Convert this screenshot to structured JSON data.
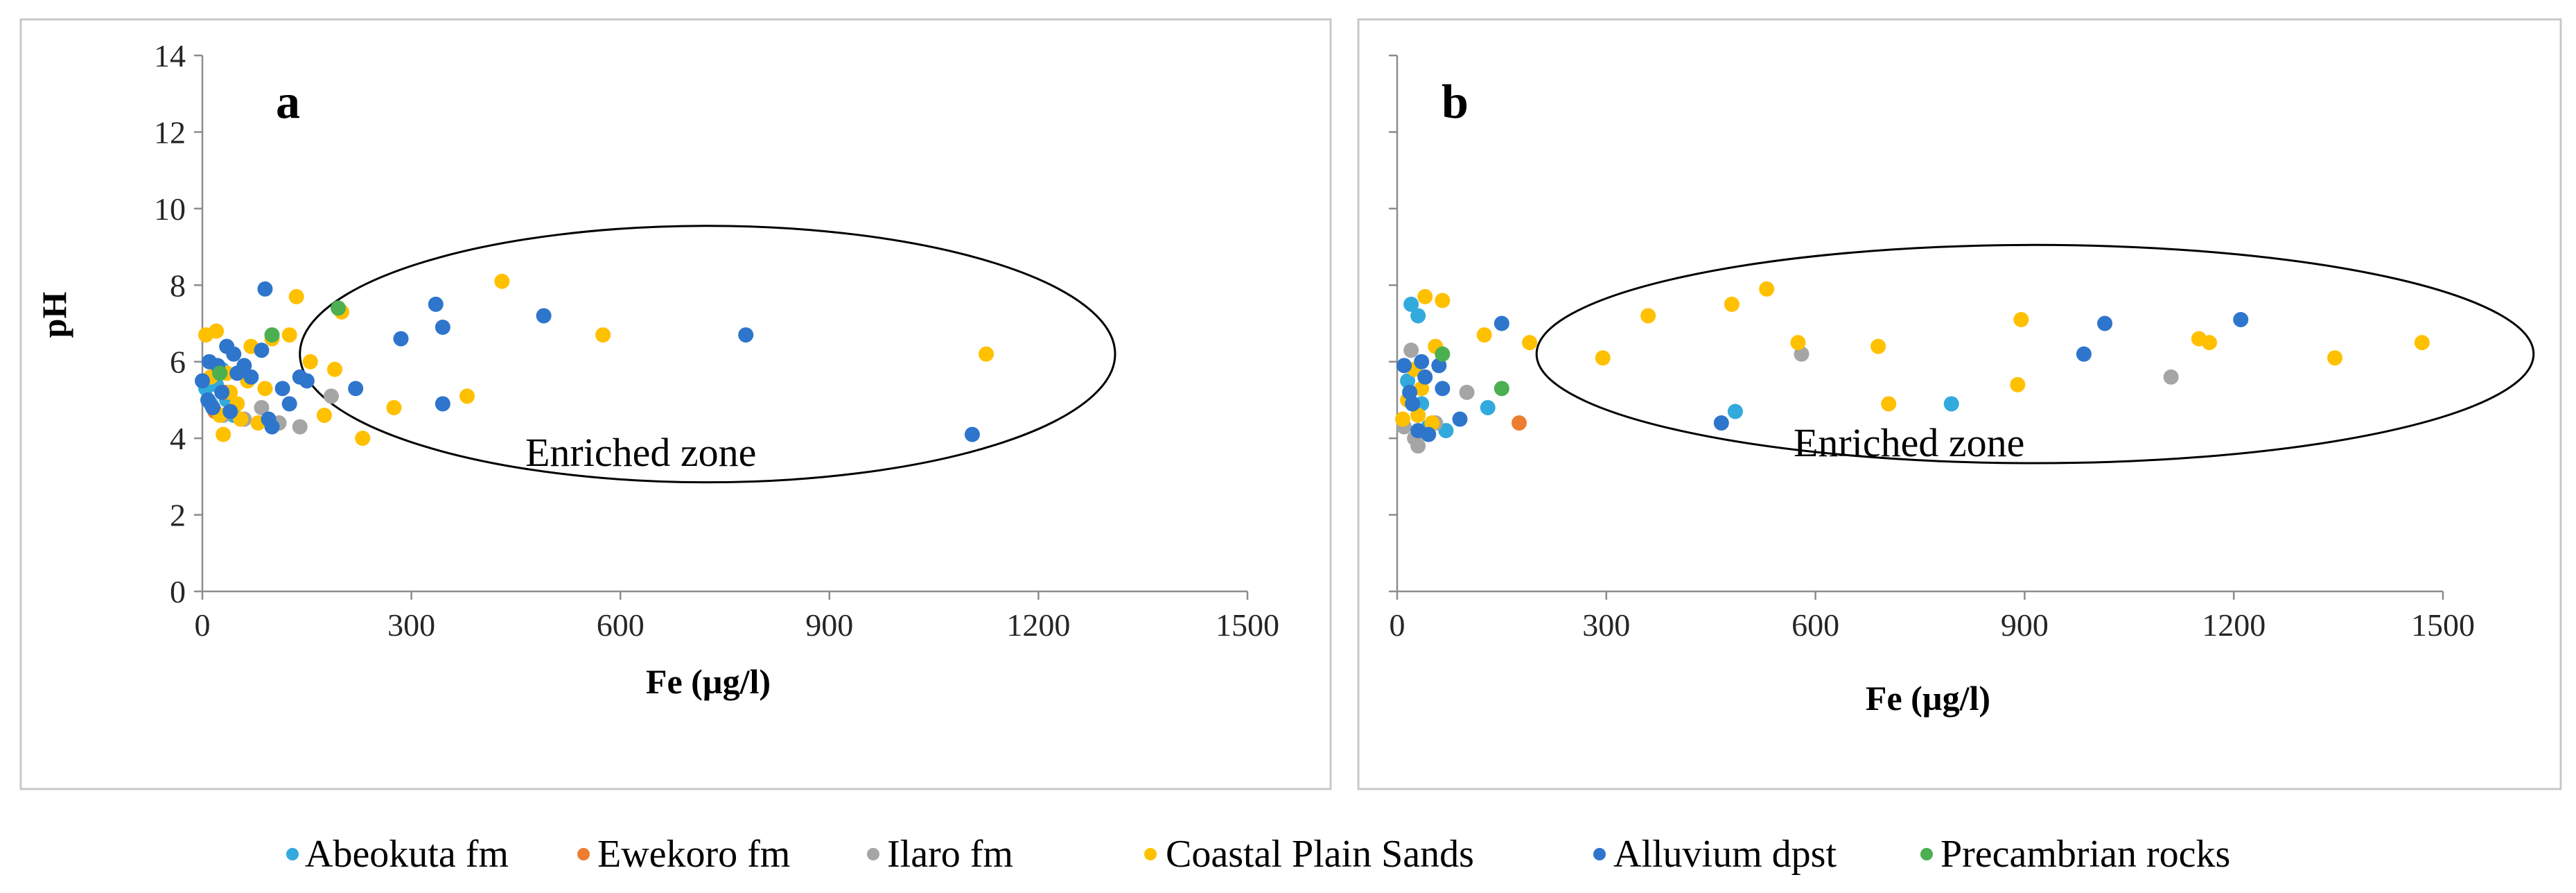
{
  "legend": [
    {
      "label": "Abeokuta fm",
      "color": "#33AADD"
    },
    {
      "label": "Ewekoro fm",
      "color": "#ED7D31"
    },
    {
      "label": "Ilaro fm",
      "color": "#A5A5A5"
    },
    {
      "label": "Coastal Plain Sands",
      "color": "#FFC000"
    },
    {
      "label": "Alluvium dpst",
      "color": "#2E75CC"
    },
    {
      "label": "Precambrian rocks",
      "color": "#4CAF50"
    }
  ],
  "chart_data": [
    {
      "type": "scatter",
      "panel_label": "a",
      "title": "",
      "xlabel": "Fe (µg/l)",
      "ylabel": "pH",
      "xlim": [
        0,
        1500
      ],
      "ylim": [
        0,
        14
      ],
      "xticks": [
        0,
        300,
        600,
        900,
        1200,
        1500
      ],
      "yticks": [
        0,
        2,
        4,
        6,
        8,
        10,
        12,
        14
      ],
      "annotation": "Enriched zone",
      "enriched_zone_ellipse": {
        "center": [
          725,
          6.2
        ],
        "x_radius": 585,
        "y_radius": 3.35
      },
      "series": [
        {
          "name": "Abeokuta fm",
          "points": [
            [
              5,
              5.3
            ],
            [
              12,
              4.9
            ],
            [
              20,
              5.4
            ],
            [
              28,
              5.8
            ],
            [
              35,
              5.0
            ],
            [
              45,
              4.6
            ]
          ]
        },
        {
          "name": "Ewekoro fm",
          "points": [
            [
              18,
              4.7
            ],
            [
              32,
              5.2
            ]
          ]
        },
        {
          "name": "Ilaro fm",
          "points": [
            [
              30,
              4.6
            ],
            [
              60,
              4.5
            ],
            [
              85,
              4.8
            ],
            [
              110,
              4.4
            ],
            [
              140,
              4.3
            ],
            [
              185,
              5.1
            ]
          ]
        },
        {
          "name": "Coastal Plain Sands",
          "points": [
            [
              5,
              6.7
            ],
            [
              12,
              5.6
            ],
            [
              20,
              6.8
            ],
            [
              25,
              4.6
            ],
            [
              30,
              4.1
            ],
            [
              35,
              5.7
            ],
            [
              40,
              5.2
            ],
            [
              50,
              4.9
            ],
            [
              55,
              4.5
            ],
            [
              65,
              5.5
            ],
            [
              70,
              6.4
            ],
            [
              80,
              4.4
            ],
            [
              90,
              5.3
            ],
            [
              100,
              6.6
            ],
            [
              125,
              6.7
            ],
            [
              135,
              7.7
            ],
            [
              155,
              6.0
            ],
            [
              175,
              4.6
            ],
            [
              190,
              5.8
            ],
            [
              200,
              7.3
            ],
            [
              230,
              4.0
            ],
            [
              275,
              4.8
            ],
            [
              380,
              5.1
            ],
            [
              430,
              8.1
            ],
            [
              575,
              6.7
            ],
            [
              1125,
              6.2
            ]
          ]
        },
        {
          "name": "Alluvium dpst",
          "points": [
            [
              0,
              5.5
            ],
            [
              8,
              5.0
            ],
            [
              10,
              6.0
            ],
            [
              15,
              4.8
            ],
            [
              22,
              5.9
            ],
            [
              28,
              5.2
            ],
            [
              35,
              6.4
            ],
            [
              40,
              4.7
            ],
            [
              45,
              6.2
            ],
            [
              50,
              5.7
            ],
            [
              60,
              5.9
            ],
            [
              70,
              5.6
            ],
            [
              85,
              6.3
            ],
            [
              90,
              7.9
            ],
            [
              95,
              4.5
            ],
            [
              100,
              4.3
            ],
            [
              115,
              5.3
            ],
            [
              125,
              4.9
            ],
            [
              140,
              5.6
            ],
            [
              150,
              5.5
            ],
            [
              220,
              5.3
            ],
            [
              285,
              6.6
            ],
            [
              335,
              7.5
            ],
            [
              345,
              6.9
            ],
            [
              345,
              4.9
            ],
            [
              490,
              7.2
            ],
            [
              780,
              6.7
            ],
            [
              1105,
              4.1
            ]
          ]
        },
        {
          "name": "Precambrian rocks",
          "points": [
            [
              25,
              5.7
            ],
            [
              100,
              6.7
            ],
            [
              195,
              7.4
            ]
          ]
        }
      ]
    },
    {
      "type": "scatter",
      "panel_label": "b",
      "title": "",
      "xlabel": "Fe (µg/l)",
      "ylabel": "",
      "xlim": [
        0,
        1500
      ],
      "ylim": [
        0,
        14
      ],
      "xticks": [
        0,
        300,
        600,
        900,
        1200,
        1500
      ],
      "yticks": [
        0,
        2,
        4,
        6,
        8,
        10,
        12,
        14
      ],
      "annotation": "Enriched zone",
      "enriched_zone_ellipse": {
        "center": [
          915,
          6.2
        ],
        "x_radius": 715,
        "y_radius": 2.85
      },
      "series": [
        {
          "name": "Abeokuta fm",
          "points": [
            [
              20,
              7.5
            ],
            [
              30,
              7.2
            ],
            [
              15,
              5.5
            ],
            [
              35,
              4.9
            ],
            [
              45,
              4.3
            ],
            [
              70,
              4.2
            ],
            [
              130,
              4.8
            ],
            [
              485,
              4.7
            ],
            [
              795,
              4.9
            ]
          ]
        },
        {
          "name": "Ewekoro fm",
          "points": [
            [
              175,
              4.4
            ]
          ]
        },
        {
          "name": "Ilaro fm",
          "points": [
            [
              20,
              6.3
            ],
            [
              10,
              4.3
            ],
            [
              25,
              4.0
            ],
            [
              30,
              3.8
            ],
            [
              55,
              4.4
            ],
            [
              100,
              5.2
            ],
            [
              580,
              6.2
            ],
            [
              1110,
              5.6
            ]
          ]
        },
        {
          "name": "Coastal Plain Sands",
          "points": [
            [
              8,
              4.5
            ],
            [
              15,
              5.0
            ],
            [
              25,
              5.8
            ],
            [
              30,
              4.6
            ],
            [
              35,
              5.3
            ],
            [
              40,
              7.7
            ],
            [
              50,
              4.4
            ],
            [
              55,
              6.4
            ],
            [
              65,
              7.6
            ],
            [
              125,
              6.7
            ],
            [
              190,
              6.5
            ],
            [
              295,
              6.1
            ],
            [
              360,
              7.2
            ],
            [
              480,
              7.5
            ],
            [
              530,
              7.9
            ],
            [
              575,
              6.5
            ],
            [
              690,
              6.4
            ],
            [
              705,
              4.9
            ],
            [
              890,
              5.4
            ],
            [
              895,
              7.1
            ],
            [
              1150,
              6.6
            ],
            [
              1165,
              6.5
            ],
            [
              1345,
              6.1
            ],
            [
              1470,
              6.5
            ]
          ]
        },
        {
          "name": "Alluvium dpst",
          "points": [
            [
              10,
              5.9
            ],
            [
              18,
              5.2
            ],
            [
              22,
              4.9
            ],
            [
              30,
              4.2
            ],
            [
              35,
              6.0
            ],
            [
              40,
              5.6
            ],
            [
              45,
              4.1
            ],
            [
              60,
              5.9
            ],
            [
              65,
              5.3
            ],
            [
              90,
              4.5
            ],
            [
              150,
              7.0
            ],
            [
              465,
              4.4
            ],
            [
              985,
              6.2
            ],
            [
              1015,
              7.0
            ],
            [
              1210,
              7.1
            ]
          ]
        },
        {
          "name": "Precambrian rocks",
          "points": [
            [
              65,
              6.2
            ],
            [
              150,
              5.3
            ]
          ]
        }
      ]
    }
  ]
}
